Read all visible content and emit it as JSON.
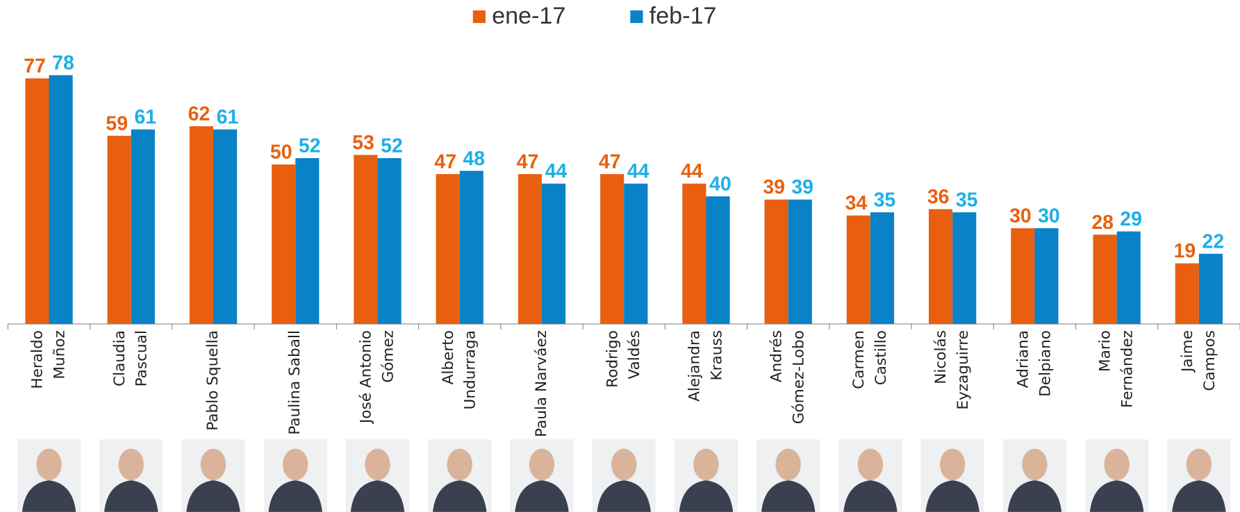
{
  "chart_data": {
    "type": "bar",
    "categories": [
      [
        "Heraldo",
        "Muñoz"
      ],
      [
        "Claudia",
        "Pascual"
      ],
      [
        "Pablo Squella"
      ],
      [
        "Paulina Saball"
      ],
      [
        "José Antonio",
        "Gómez"
      ],
      [
        "Alberto",
        "Undurraga"
      ],
      [
        "Paula Narváez"
      ],
      [
        "Rodrigo",
        "Valdés"
      ],
      [
        "Alejandra",
        "Krauss"
      ],
      [
        "Andrés",
        "Gómez-Lobo"
      ],
      [
        "Carmen",
        "Castillo"
      ],
      [
        "Nicolás",
        "Eyzaguirre"
      ],
      [
        "Adriana",
        "Delpiano"
      ],
      [
        "Mario",
        "Fernández"
      ],
      [
        "Jaime",
        "Campos"
      ]
    ],
    "series": [
      {
        "name": "ene-17",
        "color": "#e8600f",
        "label_color": "#e8600f",
        "values": [
          77,
          59,
          62,
          50,
          53,
          47,
          47,
          47,
          44,
          39,
          34,
          36,
          30,
          28,
          19
        ]
      },
      {
        "name": "feb-17",
        "color": "#0a82c8",
        "label_color": "#1ab0e8",
        "values": [
          78,
          61,
          61,
          52,
          52,
          48,
          44,
          44,
          40,
          39,
          35,
          35,
          30,
          29,
          22
        ]
      }
    ],
    "ylim": [
      0,
      80
    ],
    "legend": "top"
  }
}
